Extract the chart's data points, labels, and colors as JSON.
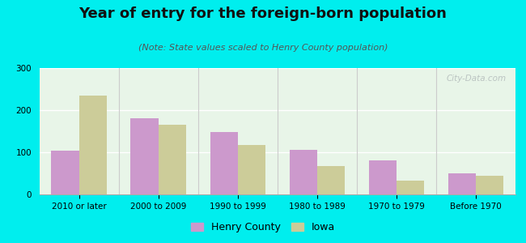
{
  "categories": [
    "2010 or later",
    "2000 to 2009",
    "1990 to 1999",
    "1980 to 1989",
    "1970 to 1979",
    "Before 1970"
  ],
  "henry_county": [
    103,
    180,
    148,
    105,
    80,
    50
  ],
  "iowa": [
    235,
    165,
    117,
    68,
    33,
    45
  ],
  "henry_color": "#cc99cc",
  "iowa_color": "#cccc99",
  "title": "Year of entry for the foreign-born population",
  "subtitle": "(Note: State values scaled to Henry County population)",
  "legend_henry": "Henry County",
  "legend_iowa": "Iowa",
  "ylim": [
    0,
    300
  ],
  "yticks": [
    0,
    100,
    200,
    300
  ],
  "outer_background": "#00eeee",
  "plot_facecolor": "#e8f5e8",
  "bar_width": 0.35,
  "title_fontsize": 13,
  "subtitle_fontsize": 8,
  "tick_fontsize": 7.5,
  "legend_fontsize": 9
}
